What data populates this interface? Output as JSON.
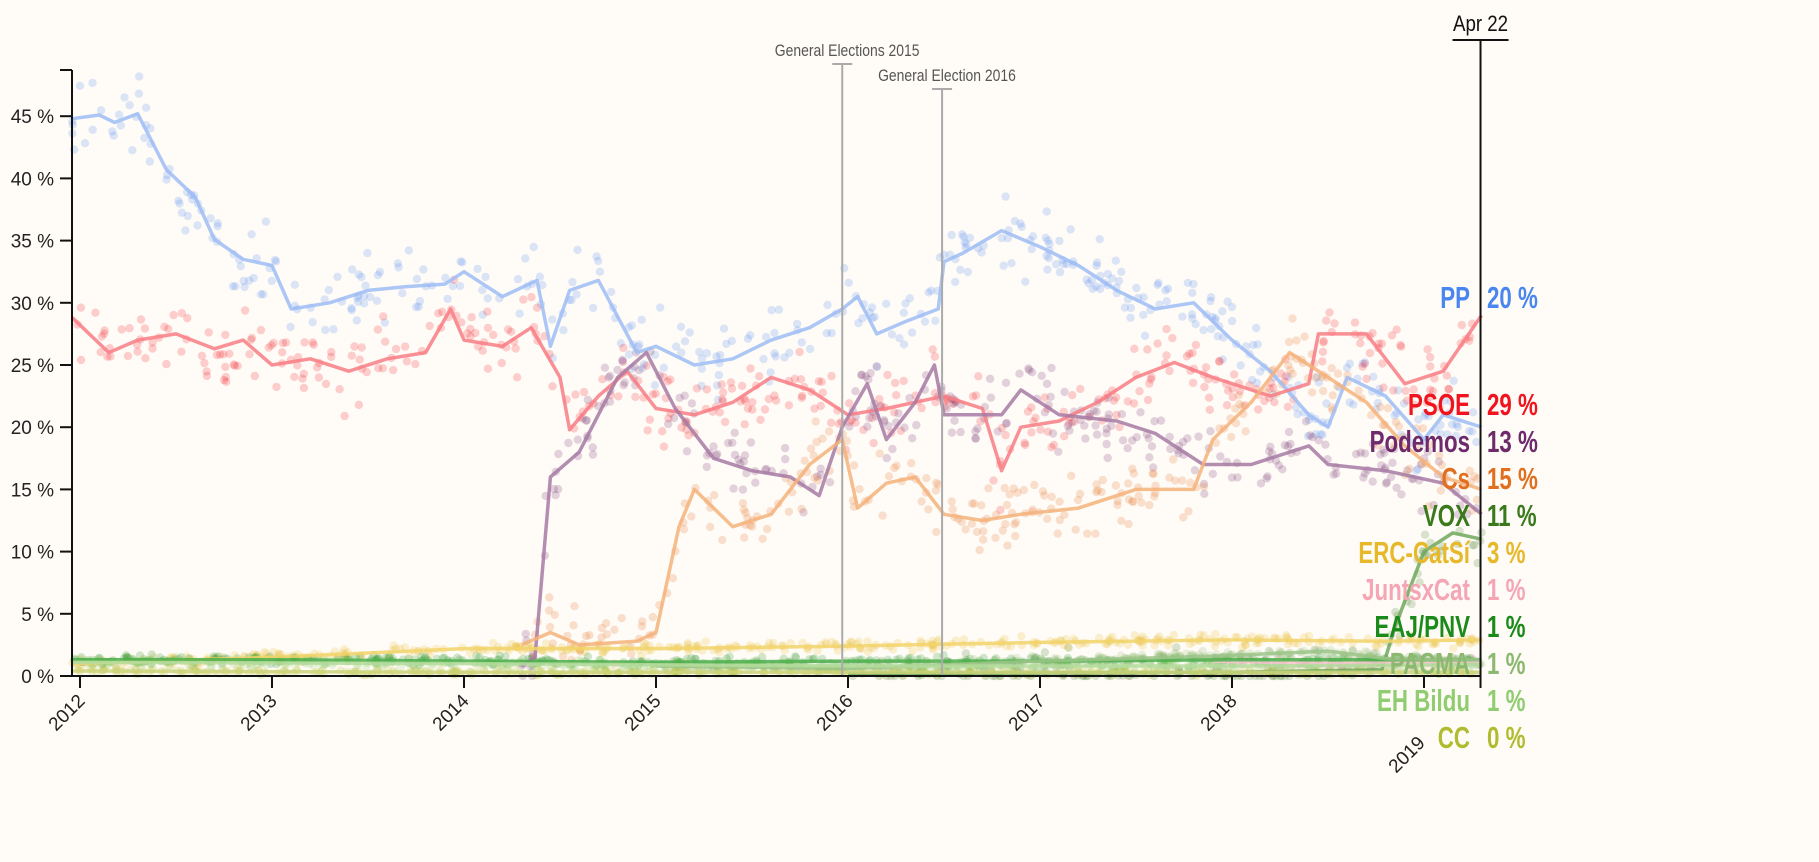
{
  "chart_data": {
    "type": "line",
    "title": "",
    "xlabel": "",
    "ylabel": "",
    "ylim": [
      0,
      48
    ],
    "xlim": [
      2011.96,
      2019.31
    ],
    "y_ticks": [
      "0 %",
      "5 %",
      "10 %",
      "15 %",
      "20 %",
      "25 %",
      "30 %",
      "35 %",
      "40 %",
      "45 %"
    ],
    "y_tick_values": [
      0,
      5,
      10,
      15,
      20,
      25,
      30,
      35,
      40,
      45
    ],
    "x_ticks": [
      "2012",
      "2013",
      "2014",
      "2015",
      "2016",
      "2017",
      "2018",
      "2019"
    ],
    "x_tick_values": [
      2012,
      2013,
      2014,
      2015,
      2016,
      2017,
      2018,
      2019
    ],
    "end_date_label": "Apr 22",
    "annotations": [
      {
        "label": "General Elections 2015",
        "x": 2015.97
      },
      {
        "label": "General Election 2016",
        "x": 2016.49
      }
    ],
    "series": [
      {
        "name": "PP",
        "final": "20 %",
        "color": "#4a86f0",
        "line": "#9dbcf5",
        "spread": 2.2,
        "points": [
          [
            2011.96,
            44.8
          ],
          [
            2012.1,
            45.1
          ],
          [
            2012.18,
            44.5
          ],
          [
            2012.3,
            45.2
          ],
          [
            2012.45,
            40.7
          ],
          [
            2012.6,
            38.5
          ],
          [
            2012.7,
            35.1
          ],
          [
            2012.85,
            33.5
          ],
          [
            2013.0,
            33.0
          ],
          [
            2013.1,
            29.5
          ],
          [
            2013.3,
            30
          ],
          [
            2013.5,
            31
          ],
          [
            2013.7,
            31.3
          ],
          [
            2013.9,
            31.5
          ],
          [
            2014.0,
            32.5
          ],
          [
            2014.2,
            30.5
          ],
          [
            2014.38,
            31.8
          ],
          [
            2014.45,
            26.5
          ],
          [
            2014.55,
            31
          ],
          [
            2014.7,
            31.8
          ],
          [
            2014.9,
            26
          ],
          [
            2015.0,
            26.5
          ],
          [
            2015.2,
            25
          ],
          [
            2015.4,
            25.5
          ],
          [
            2015.6,
            27
          ],
          [
            2015.8,
            28
          ],
          [
            2015.97,
            29.5
          ],
          [
            2016.05,
            30.5
          ],
          [
            2016.15,
            27.5
          ],
          [
            2016.3,
            28.5
          ],
          [
            2016.47,
            29.5
          ],
          [
            2016.5,
            33.3
          ],
          [
            2016.6,
            34
          ],
          [
            2016.8,
            35.8
          ],
          [
            2017.0,
            34.5
          ],
          [
            2017.2,
            33
          ],
          [
            2017.4,
            31
          ],
          [
            2017.6,
            29.5
          ],
          [
            2017.8,
            30
          ],
          [
            2018.0,
            27
          ],
          [
            2018.2,
            24.5
          ],
          [
            2018.4,
            21
          ],
          [
            2018.5,
            20
          ],
          [
            2018.6,
            24
          ],
          [
            2018.8,
            22.5
          ],
          [
            2019.0,
            19
          ],
          [
            2019.1,
            21
          ],
          [
            2019.3,
            20
          ]
        ]
      },
      {
        "name": "PSOE",
        "final": "29 %",
        "color": "#f0141e",
        "line": "#f87c84",
        "spread": 2.4,
        "points": [
          [
            2011.96,
            28.8
          ],
          [
            2012.15,
            26
          ],
          [
            2012.3,
            27
          ],
          [
            2012.5,
            27.5
          ],
          [
            2012.7,
            26.3
          ],
          [
            2012.85,
            27
          ],
          [
            2013.0,
            25
          ],
          [
            2013.2,
            25.5
          ],
          [
            2013.4,
            24.5
          ],
          [
            2013.6,
            25.5
          ],
          [
            2013.8,
            26
          ],
          [
            2013.93,
            29.5
          ],
          [
            2014.0,
            27
          ],
          [
            2014.2,
            26.5
          ],
          [
            2014.35,
            28
          ],
          [
            2014.5,
            24
          ],
          [
            2014.55,
            19.8
          ],
          [
            2014.7,
            22.5
          ],
          [
            2014.85,
            24.5
          ],
          [
            2015.0,
            21.5
          ],
          [
            2015.2,
            21
          ],
          [
            2015.4,
            22
          ],
          [
            2015.6,
            24
          ],
          [
            2015.8,
            23
          ],
          [
            2016.0,
            21
          ],
          [
            2016.2,
            21.5
          ],
          [
            2016.5,
            22.5
          ],
          [
            2016.7,
            21.5
          ],
          [
            2016.8,
            16.5
          ],
          [
            2016.9,
            20
          ],
          [
            2017.1,
            20.5
          ],
          [
            2017.3,
            22
          ],
          [
            2017.5,
            24
          ],
          [
            2017.7,
            25.2
          ],
          [
            2017.9,
            24
          ],
          [
            2018.2,
            22.5
          ],
          [
            2018.4,
            23.5
          ],
          [
            2018.45,
            27.5
          ],
          [
            2018.7,
            27.5
          ],
          [
            2018.9,
            23.5
          ],
          [
            2019.1,
            24.5
          ],
          [
            2019.3,
            29
          ]
        ]
      },
      {
        "name": "Podemos",
        "final": "13 %",
        "color": "#6e2a6a",
        "line": "#a67aa3",
        "spread": 2.3,
        "points": [
          [
            2014.3,
            0.8
          ],
          [
            2014.37,
            1.5
          ],
          [
            2014.45,
            16
          ],
          [
            2014.6,
            18
          ],
          [
            2014.8,
            24
          ],
          [
            2014.95,
            26
          ],
          [
            2015.1,
            21.5
          ],
          [
            2015.3,
            17.5
          ],
          [
            2015.5,
            16.5
          ],
          [
            2015.7,
            16
          ],
          [
            2015.85,
            14.5
          ],
          [
            2015.97,
            20
          ],
          [
            2016.1,
            23.5
          ],
          [
            2016.2,
            19
          ],
          [
            2016.35,
            22
          ],
          [
            2016.45,
            25
          ],
          [
            2016.5,
            21
          ],
          [
            2016.8,
            21
          ],
          [
            2016.9,
            23
          ],
          [
            2017.1,
            21
          ],
          [
            2017.4,
            20.5
          ],
          [
            2017.6,
            19.5
          ],
          [
            2017.85,
            17
          ],
          [
            2018.1,
            17
          ],
          [
            2018.4,
            18.5
          ],
          [
            2018.5,
            17
          ],
          [
            2018.8,
            16.5
          ],
          [
            2019.1,
            15.5
          ],
          [
            2019.3,
            13
          ]
        ]
      },
      {
        "name": "Cs",
        "final": "15 %",
        "color": "#e07020",
        "line": "#f5b27a",
        "spread": 2.0,
        "points": [
          [
            2014.3,
            2.5
          ],
          [
            2014.45,
            3.5
          ],
          [
            2014.6,
            2.5
          ],
          [
            2014.9,
            2.8
          ],
          [
            2015.0,
            3.5
          ],
          [
            2015.12,
            12
          ],
          [
            2015.2,
            15
          ],
          [
            2015.4,
            12
          ],
          [
            2015.6,
            13
          ],
          [
            2015.8,
            17
          ],
          [
            2015.97,
            19
          ],
          [
            2016.05,
            13.5
          ],
          [
            2016.2,
            15.5
          ],
          [
            2016.35,
            16
          ],
          [
            2016.5,
            13
          ],
          [
            2016.7,
            12.5
          ],
          [
            2016.9,
            13
          ],
          [
            2017.2,
            13.5
          ],
          [
            2017.5,
            15
          ],
          [
            2017.8,
            15
          ],
          [
            2017.9,
            19
          ],
          [
            2018.1,
            22
          ],
          [
            2018.3,
            26
          ],
          [
            2018.5,
            24
          ],
          [
            2018.7,
            22
          ],
          [
            2018.9,
            18.5
          ],
          [
            2019.1,
            16
          ],
          [
            2019.3,
            15
          ]
        ]
      },
      {
        "name": "VOX",
        "final": "11 %",
        "color": "#3a7a1c",
        "line": "#6fa85a",
        "spread": 1.5,
        "points": [
          [
            2016.0,
            0.2
          ],
          [
            2018.0,
            0.3
          ],
          [
            2018.78,
            0.5
          ],
          [
            2018.85,
            4
          ],
          [
            2019.0,
            10
          ],
          [
            2019.15,
            11.5
          ],
          [
            2019.3,
            11
          ]
        ]
      },
      {
        "name": "ERC-CatSí",
        "final": "3 %",
        "color": "#e6b82a",
        "line": "#f2d46a",
        "spread": 0.4,
        "points": [
          [
            2011.96,
            1.0
          ],
          [
            2013.0,
            1.5
          ],
          [
            2014.0,
            2.2
          ],
          [
            2015.0,
            2.2
          ],
          [
            2016.0,
            2.4
          ],
          [
            2017.0,
            2.7
          ],
          [
            2018.0,
            2.9
          ],
          [
            2018.8,
            2.8
          ],
          [
            2019.3,
            2.9
          ]
        ]
      },
      {
        "name": "JuntsxCat",
        "final": "1 %",
        "color": "#f4a6b4",
        "line": "#f8c6d0",
        "spread": 0.3,
        "points": [
          [
            2017.9,
            1.2
          ],
          [
            2018.5,
            1.0
          ],
          [
            2019.3,
            1.2
          ]
        ]
      },
      {
        "name": "EAJ/PNV",
        "final": "1 %",
        "color": "#1a8a1a",
        "line": "#4caf4c",
        "spread": 0.3,
        "points": [
          [
            2011.96,
            1.3
          ],
          [
            2013.0,
            1.3
          ],
          [
            2014.0,
            1.2
          ],
          [
            2015.0,
            1.1
          ],
          [
            2016.0,
            1.2
          ],
          [
            2017.0,
            1.2
          ],
          [
            2018.0,
            1.3
          ],
          [
            2019.3,
            1.3
          ]
        ]
      },
      {
        "name": "PACMA",
        "final": "1 %",
        "color": "#8cb870",
        "line": "#9cc488",
        "spread": 0.3,
        "points": [
          [
            2015.0,
            0.8
          ],
          [
            2016.0,
            0.6
          ],
          [
            2017.0,
            1.2
          ],
          [
            2017.9,
            1.6
          ],
          [
            2018.5,
            2.0
          ],
          [
            2018.8,
            1.4
          ],
          [
            2019.3,
            1.3
          ]
        ]
      },
      {
        "name": "EH Bildu",
        "final": "1 %",
        "color": "#90cc70",
        "line": "#b4dc9c",
        "spread": 0.3,
        "points": [
          [
            2011.96,
            1.1
          ],
          [
            2014.0,
            1.0
          ],
          [
            2016.0,
            0.8
          ],
          [
            2018.0,
            0.8
          ],
          [
            2019.3,
            0.9
          ]
        ]
      },
      {
        "name": "CC",
        "final": "0 %",
        "color": "#b0bc30",
        "line": "#cdd47a",
        "spread": 0.2,
        "points": [
          [
            2011.96,
            0.4
          ],
          [
            2014.0,
            0.3
          ],
          [
            2016.0,
            0.3
          ],
          [
            2018.0,
            0.3
          ],
          [
            2019.3,
            0.3
          ]
        ]
      }
    ]
  }
}
